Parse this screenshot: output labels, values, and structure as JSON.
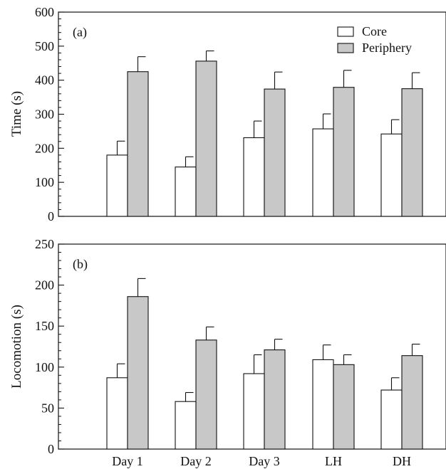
{
  "legend": [
    {
      "label": "Core",
      "color": "#ffffff"
    },
    {
      "label": "Periphery",
      "color": "#c8c8c8"
    }
  ],
  "chart_data": [
    {
      "type": "bar",
      "panel_label": "(a)",
      "ylabel": "Time (s)",
      "ylim": [
        0,
        600
      ],
      "yticks": [
        "0",
        "100",
        "200",
        "300",
        "400",
        "500",
        "600"
      ],
      "categories": [
        "Day 1",
        "Day 2",
        "Day 3",
        "LH",
        "DH"
      ],
      "series": [
        {
          "name": "Core",
          "color": "#ffffff",
          "values": [
            180,
            145,
            231,
            257,
            242
          ],
          "errors": [
            41,
            30,
            49,
            44,
            42
          ]
        },
        {
          "name": "Periphery",
          "color": "#c8c8c8",
          "values": [
            425,
            456,
            374,
            379,
            375
          ],
          "errors": [
            44,
            30,
            50,
            50,
            47
          ]
        }
      ],
      "legend_position": "top-right",
      "grid": false
    },
    {
      "type": "bar",
      "panel_label": "(b)",
      "ylabel": "Locomotion (s)",
      "ylim": [
        0,
        250
      ],
      "yticks": [
        "0",
        "50",
        "100",
        "150",
        "200",
        "250"
      ],
      "categories": [
        "Day 1",
        "Day 2",
        "Day 3",
        "LH",
        "DH"
      ],
      "series": [
        {
          "name": "Core",
          "color": "#ffffff",
          "values": [
            87,
            58,
            92,
            109,
            72
          ],
          "errors": [
            17,
            11,
            23,
            18,
            15
          ]
        },
        {
          "name": "Periphery",
          "color": "#c8c8c8",
          "values": [
            186,
            133,
            121,
            103,
            114
          ],
          "errors": [
            22,
            16,
            13,
            12,
            14
          ]
        }
      ],
      "grid": false
    }
  ]
}
